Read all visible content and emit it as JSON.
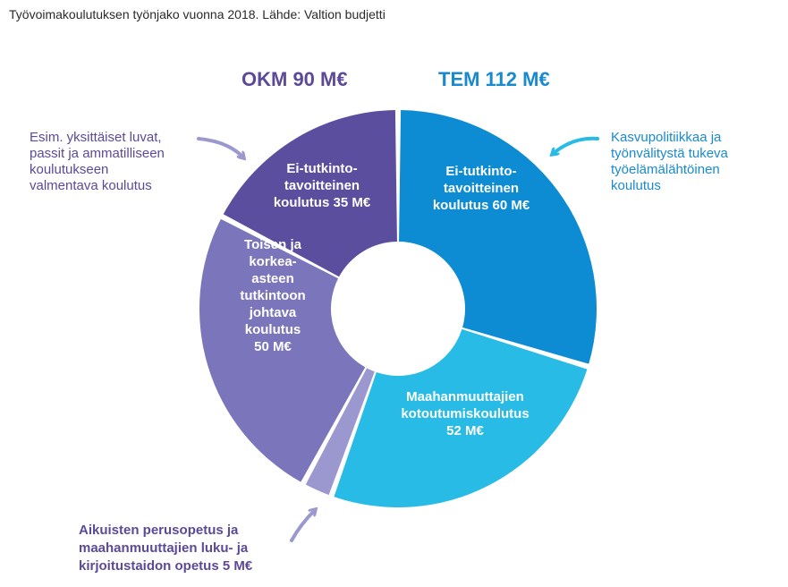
{
  "title": "Työvoimakoulutuksen työnjako vuonna 2018. Lähde: Valtion budjetti",
  "groups": {
    "okm": "OKM 90 M€",
    "tem": "TEM 112 M€"
  },
  "notes": {
    "left": "Esim. yksittäiset luvat,\npassit ja ammatilliseen\nkoulutukseen\nvalmentava koulutus",
    "right": "Kasvupolitiikkaa ja\ntyönvälitystä tukeva\ntyöelämälähtöinen\nkoulutus",
    "bottom": "Aikuisten perusopetus ja\nmaahanmuuttajien luku- ja\nkirjoitustaidon opetus 5 M€"
  },
  "colors": {
    "okm": "#5c4a98",
    "tem": "#1a8ad0"
  },
  "chart_data": {
    "type": "pie",
    "donut": true,
    "unit": "M€",
    "slices": [
      {
        "group": "TEM",
        "value": 60,
        "label_lines": [
          "Ei-tutkinto-",
          "tavoitteinen",
          "koulutus 60 M€"
        ],
        "color": "#0d8bd3"
      },
      {
        "group": "TEM",
        "value": 52,
        "label_lines": [
          "Maahanmuuttajien",
          "kotoutumiskoulutus",
          "52 M€"
        ],
        "color": "#27bbe6"
      },
      {
        "group": "OKM",
        "value": 5,
        "label_lines": [],
        "color": "#9a98cf"
      },
      {
        "group": "OKM",
        "value": 50,
        "label_lines": [
          "Toisen ja",
          "korkea-",
          "asteen",
          "tutkintoon",
          "johtava",
          "koulutus",
          "50 M€"
        ],
        "color": "#7b75bb"
      },
      {
        "group": "OKM",
        "value": 35,
        "label_lines": [
          "Ei-tutkinto-",
          "tavoitteinen",
          "koulutus 35 M€"
        ],
        "color": "#5c4e9e"
      }
    ]
  }
}
